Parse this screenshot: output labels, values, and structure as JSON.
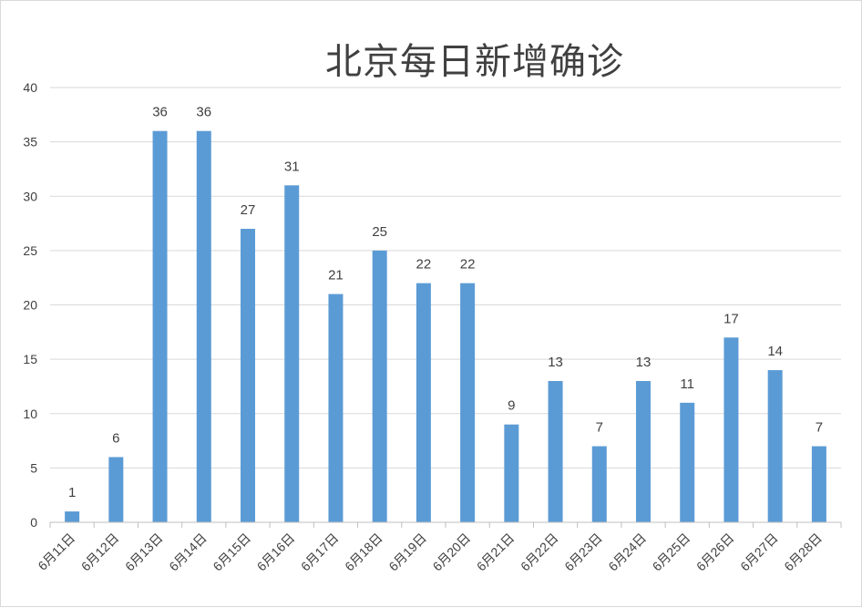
{
  "chart_data": {
    "type": "bar",
    "title": "北京每日新增确诊",
    "xlabel": "",
    "ylabel": "",
    "categories": [
      "6月11日",
      "6月12日",
      "6月13日",
      "6月14日",
      "6月15日",
      "6月16日",
      "6月17日",
      "6月18日",
      "6月19日",
      "6月20日",
      "6月21日",
      "6月22日",
      "6月23日",
      "6月24日",
      "6月25日",
      "6月26日",
      "6月27日",
      "6月28日"
    ],
    "values": [
      1,
      6,
      36,
      36,
      27,
      31,
      21,
      25,
      22,
      22,
      9,
      13,
      7,
      13,
      11,
      17,
      14,
      7
    ],
    "ylim": [
      0,
      40
    ],
    "yticks": [
      0,
      5,
      10,
      15,
      20,
      25,
      30,
      35,
      40
    ],
    "grid": true,
    "legend": "none",
    "bar_color": "#5b9bd5",
    "data_labels": true
  }
}
